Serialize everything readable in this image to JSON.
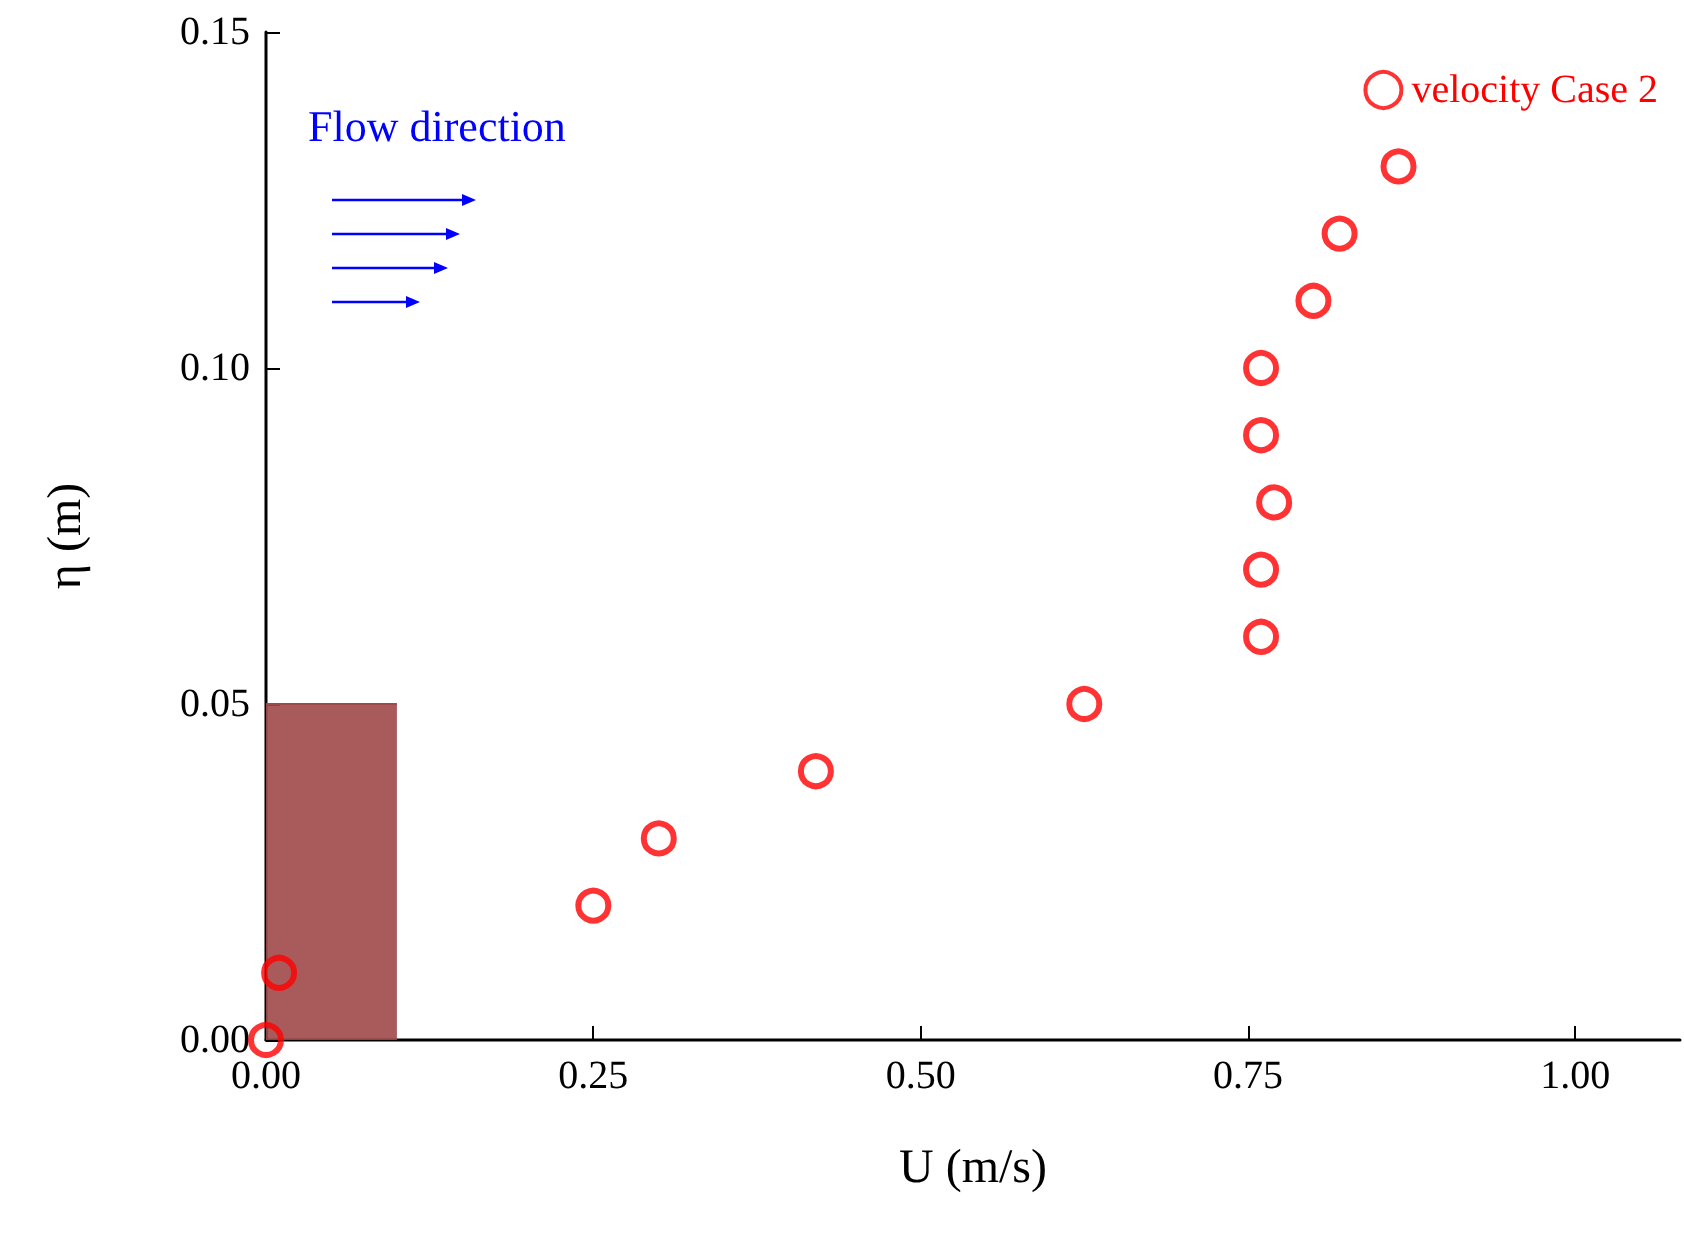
{
  "chart_data": {
    "type": "scatter",
    "xlabel": "U (m/s)",
    "ylabel": "η (m)",
    "annotations": [
      "Flow direction"
    ],
    "xlim": [
      0,
      1.08
    ],
    "ylim": [
      0,
      0.15
    ],
    "xticks": [
      {
        "value": 0,
        "label": "0.00"
      },
      {
        "value": 0.25,
        "label": "0.25"
      },
      {
        "value": 0.5,
        "label": "0.50"
      },
      {
        "value": 0.75,
        "label": "0.75"
      },
      {
        "value": 1,
        "label": "1.00"
      }
    ],
    "yticks": [
      {
        "value": 0,
        "label": "0.00"
      },
      {
        "value": 0.05,
        "label": "0.05"
      },
      {
        "value": 0.1,
        "label": "0.10"
      },
      {
        "value": 0.15,
        "label": "0.15"
      }
    ],
    "series": [
      {
        "type": "area",
        "marker": "none",
        "color": "#a0494a",
        "x": [
          0,
          0.1
        ],
        "values": [
          0.05,
          0.05
        ]
      },
      {
        "name": "velocity Case 2",
        "color": "#ff0000",
        "x": [
          0,
          0.01,
          0.25,
          0.3,
          0.42,
          0.625,
          0.76,
          0.76,
          0.77,
          0.76,
          0.76,
          0.8,
          0.82,
          0.865
        ],
        "values": [
          0,
          0.01,
          0.02,
          0.03,
          0.04,
          0.05,
          0.06,
          0.07,
          0.08,
          0.09,
          0.1,
          0.11,
          0.12,
          0.13
        ]
      }
    ],
    "marker": "circle",
    "grid": false,
    "legend": "top right"
  }
}
